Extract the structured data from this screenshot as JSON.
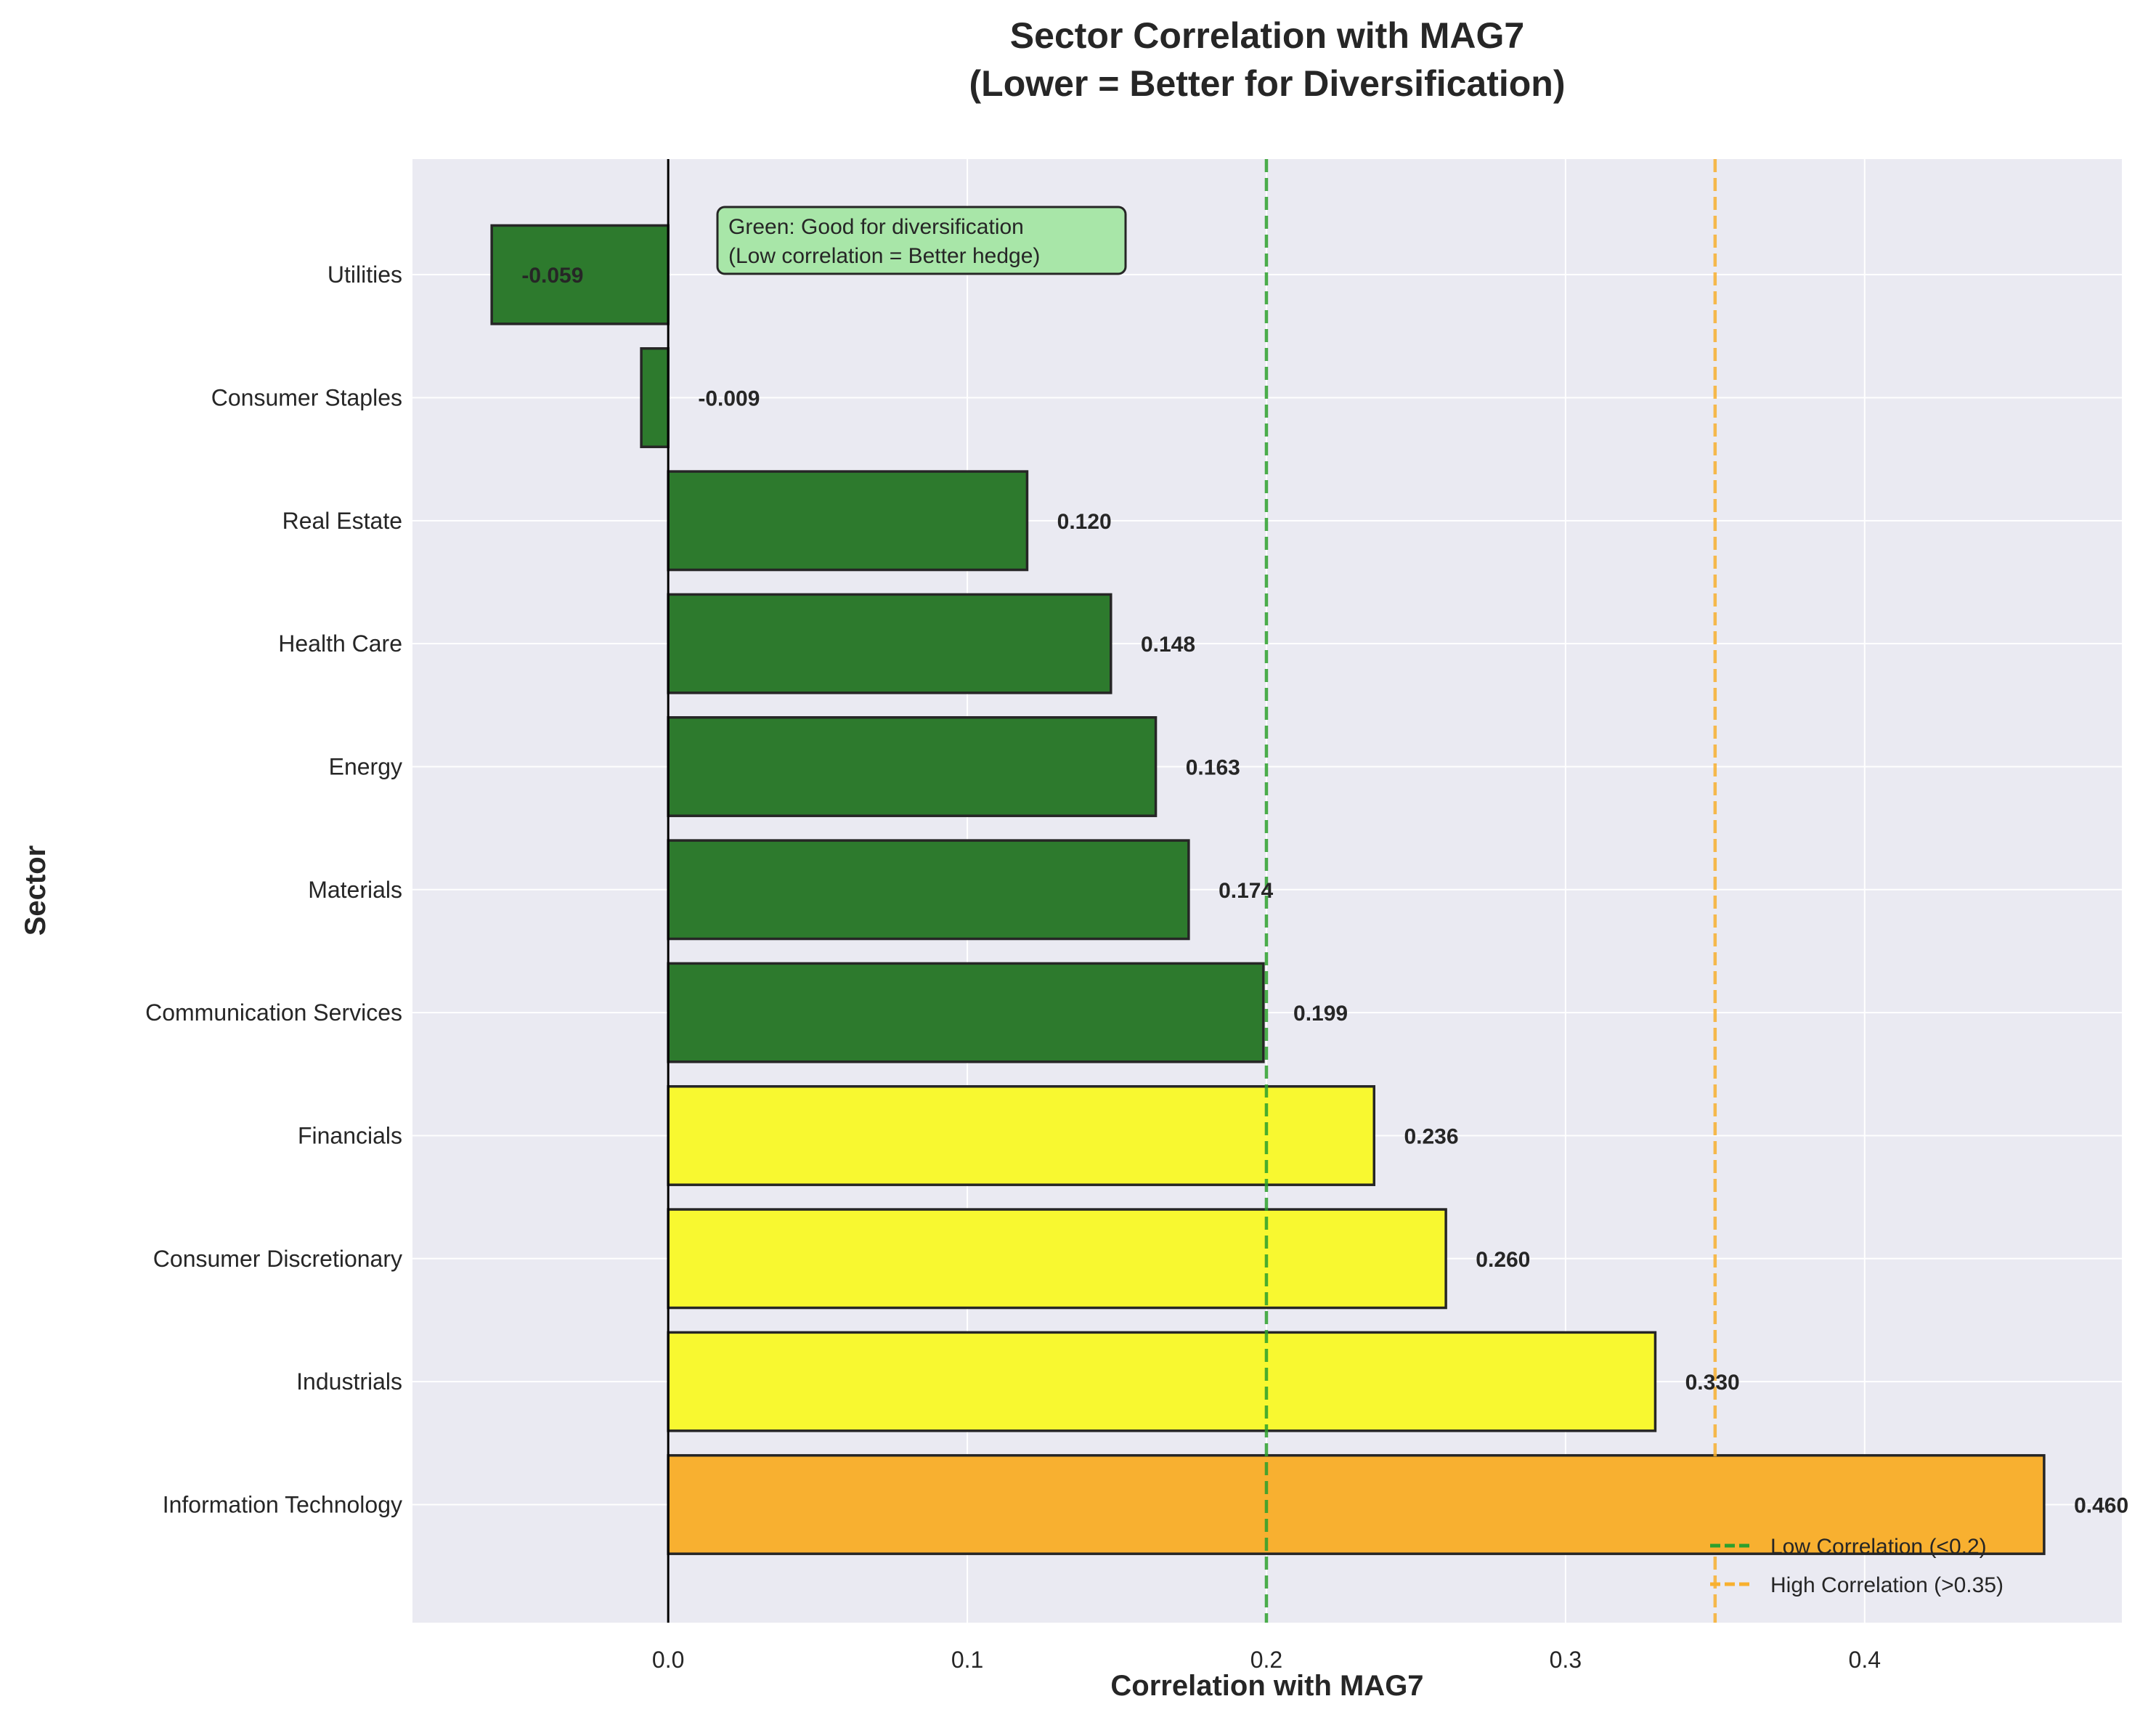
{
  "chart_data": {
    "type": "bar",
    "orientation": "horizontal",
    "title": "Sector Correlation with MAG7\n(Lower = Better for Diversification)",
    "xlabel": "Correlation with MAG7",
    "ylabel": "Sector",
    "xlim": [
      -0.0855,
      0.486
    ],
    "xticks": [
      0.0,
      0.1,
      0.2,
      0.3,
      0.4
    ],
    "xtick_labels": [
      "0.0",
      "0.1",
      "0.2",
      "0.3",
      "0.4"
    ],
    "grid": true,
    "categories": [
      "Utilities",
      "Consumer Staples",
      "Real Estate",
      "Health Care",
      "Energy",
      "Materials",
      "Communication Services",
      "Financials",
      "Consumer Discretionary",
      "Industrials",
      "Information Technology"
    ],
    "values": [
      -0.059,
      -0.009,
      0.12,
      0.148,
      0.163,
      0.174,
      0.199,
      0.236,
      0.26,
      0.33,
      0.46
    ],
    "value_labels": [
      "-0.059",
      "-0.009",
      "0.120",
      "0.148",
      "0.163",
      "0.174",
      "0.199",
      "0.236",
      "0.260",
      "0.330",
      "0.460"
    ],
    "bar_colors": [
      "#2d7a2d",
      "#2d7a2d",
      "#2d7a2d",
      "#2d7a2d",
      "#2d7a2d",
      "#2d7a2d",
      "#2d7a2d",
      "#f8f830",
      "#f8f830",
      "#f8f830",
      "#f8b030"
    ],
    "reference_lines": [
      {
        "value": 0.2,
        "label": "Low Correlation (<0.2)",
        "color": "#2ca02c",
        "style": "dashed"
      },
      {
        "value": 0.35,
        "label": "High Correlation (>0.35)",
        "color": "#f8b030",
        "style": "dashed"
      }
    ],
    "legend_placement": "lower-right",
    "annotation": {
      "lines": [
        "Green: Good for diversification",
        "(Low correlation = Better hedge)"
      ],
      "background": "#a8e6a8"
    },
    "colors": {
      "plot_background": "#eaeaf2",
      "grid": "#ffffff"
    }
  }
}
